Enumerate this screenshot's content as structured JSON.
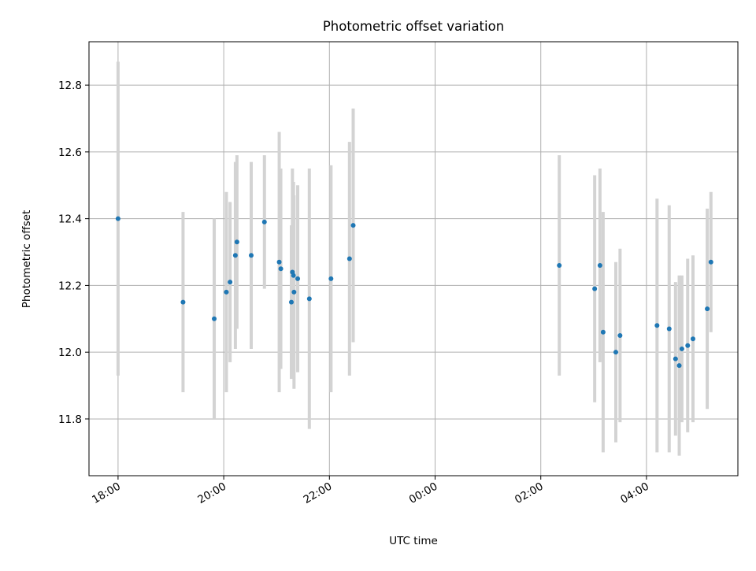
{
  "chart_data": {
    "type": "scatter",
    "title": "Photometric offset variation",
    "xlabel": "UTC time",
    "ylabel": "Photometric offset",
    "x_tick_labels": [
      "18:00",
      "20:00",
      "22:00",
      "00:00",
      "02:00",
      "04:00"
    ],
    "x_tick_hours": [
      18,
      20,
      22,
      24,
      26,
      28
    ],
    "y_ticks": [
      11.8,
      12.0,
      12.2,
      12.4,
      12.6,
      12.8
    ],
    "y_tick_labels": [
      "11.8",
      "12.0",
      "12.2",
      "12.4",
      "12.6",
      "12.8"
    ],
    "xlim_hours": [
      17.45,
      29.73
    ],
    "ylim": [
      11.63,
      12.93
    ],
    "grid": true,
    "point_color": "#1f77b4",
    "errorbar_color": "#d3d3d3",
    "points": [
      {
        "t": 18.0,
        "y": 12.4,
        "err": 0.47
      },
      {
        "t": 19.23,
        "y": 12.15,
        "err": 0.27
      },
      {
        "t": 19.82,
        "y": 12.1,
        "err": 0.3
      },
      {
        "t": 20.05,
        "y": 12.18,
        "err": 0.3
      },
      {
        "t": 20.12,
        "y": 12.21,
        "err": 0.24
      },
      {
        "t": 20.22,
        "y": 12.29,
        "err": 0.28
      },
      {
        "t": 20.25,
        "y": 12.33,
        "err": 0.26
      },
      {
        "t": 20.52,
        "y": 12.29,
        "err": 0.28
      },
      {
        "t": 20.77,
        "y": 12.39,
        "err": 0.2
      },
      {
        "t": 21.05,
        "y": 12.27,
        "err": 0.39
      },
      {
        "t": 21.08,
        "y": 12.25,
        "err": 0.3
      },
      {
        "t": 21.28,
        "y": 12.15,
        "err": 0.23
      },
      {
        "t": 21.3,
        "y": 12.24,
        "err": 0.31
      },
      {
        "t": 21.32,
        "y": 12.23,
        "err": 0.28
      },
      {
        "t": 21.33,
        "y": 12.18,
        "err": 0.29
      },
      {
        "t": 21.4,
        "y": 12.22,
        "err": 0.28
      },
      {
        "t": 21.62,
        "y": 12.16,
        "err": 0.39
      },
      {
        "t": 22.03,
        "y": 12.22,
        "err": 0.34
      },
      {
        "t": 22.38,
        "y": 12.28,
        "err": 0.35
      },
      {
        "t": 22.45,
        "y": 12.38,
        "err": 0.35
      },
      {
        "t": 26.35,
        "y": 12.26,
        "err": 0.33
      },
      {
        "t": 27.02,
        "y": 12.19,
        "err": 0.34
      },
      {
        "t": 27.12,
        "y": 12.26,
        "err": 0.29
      },
      {
        "t": 27.18,
        "y": 12.06,
        "err": 0.36
      },
      {
        "t": 27.42,
        "y": 12.0,
        "err": 0.27
      },
      {
        "t": 27.5,
        "y": 12.05,
        "err": 0.26
      },
      {
        "t": 28.2,
        "y": 12.08,
        "err": 0.38
      },
      {
        "t": 28.43,
        "y": 12.07,
        "err": 0.37
      },
      {
        "t": 28.55,
        "y": 11.98,
        "err": 0.23
      },
      {
        "t": 28.62,
        "y": 11.96,
        "err": 0.27
      },
      {
        "t": 28.67,
        "y": 12.01,
        "err": 0.22
      },
      {
        "t": 28.78,
        "y": 12.02,
        "err": 0.26
      },
      {
        "t": 28.88,
        "y": 12.04,
        "err": 0.25
      },
      {
        "t": 29.15,
        "y": 12.13,
        "err": 0.3
      },
      {
        "t": 29.22,
        "y": 12.27,
        "err": 0.21
      }
    ]
  }
}
